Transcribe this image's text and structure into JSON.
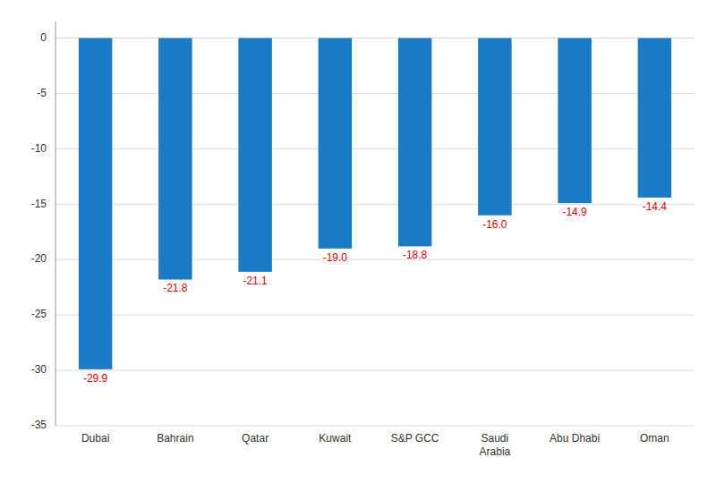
{
  "chart_data": {
    "type": "bar",
    "categories": [
      "Dubai",
      "Bahrain",
      "Qatar",
      "Kuwait",
      "S&P GCC",
      "Saudi\nArabia",
      "Abu Dhabi",
      "Oman"
    ],
    "values": [
      -29.9,
      -21.8,
      -21.1,
      -19.0,
      -18.8,
      -16.0,
      -14.9,
      -14.4
    ],
    "value_labels": [
      "-29.9",
      "-21.8",
      "-21.1",
      "-19.0",
      "-18.8",
      "-16.0",
      "-14.9",
      "-14.4"
    ],
    "color": "#1A7BC4",
    "ylim": [
      -35,
      1.5
    ],
    "yticks": [
      0,
      -5,
      -10,
      -15,
      -20,
      -25,
      -30,
      -35
    ],
    "grid": true,
    "data_labels": true
  }
}
